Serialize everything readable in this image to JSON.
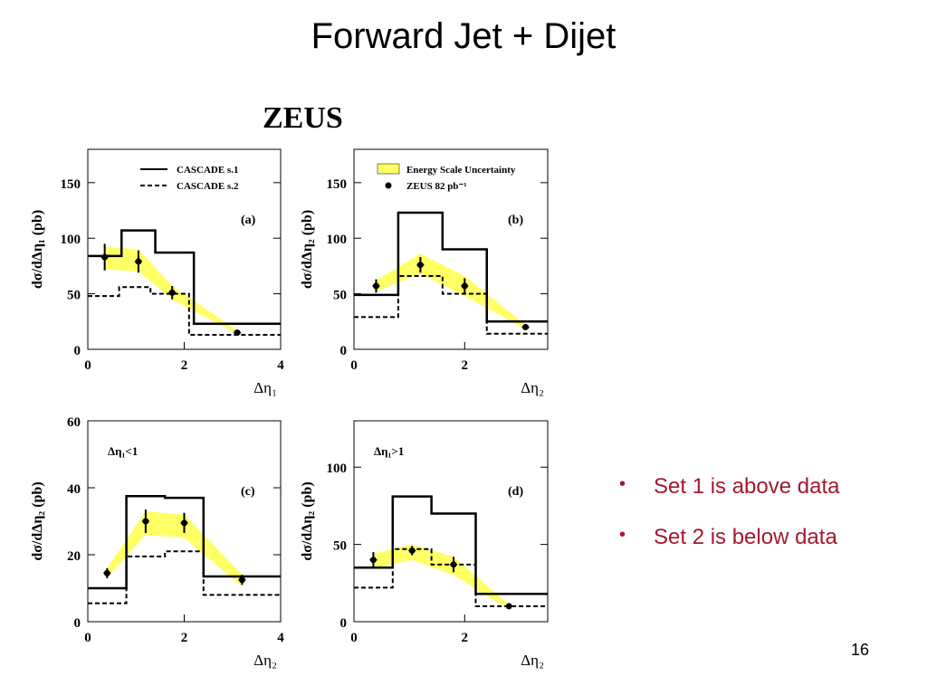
{
  "slide": {
    "title": "Forward Jet + Dijet",
    "experiment_label": "ZEUS",
    "bullets": [
      "Set 1 is above data",
      "Set 2 is below data"
    ],
    "page_number": "16"
  },
  "colors": {
    "band_fill": "#ffff66",
    "line": "#000000",
    "bullet_text": "#a3192b"
  },
  "chart_data": [
    {
      "type": "line",
      "panel_label": "(a)",
      "xlabel": "Δη₁",
      "ylabel": "dσ/dΔη₁  (pb)",
      "xlim": [
        0,
        4
      ],
      "ylim": [
        0,
        180
      ],
      "xticks": [
        0,
        2,
        4
      ],
      "yticks": [
        0,
        50,
        100,
        150
      ],
      "legend": {
        "position": "top-right",
        "entries": [
          {
            "label": "CASCADE s.1",
            "style": "solid"
          },
          {
            "label": "CASCADE s.2",
            "style": "dashed"
          }
        ]
      },
      "series": [
        {
          "name": "CASCADE s.1",
          "kind": "step",
          "style": "solid",
          "bins": [
            0,
            0.7,
            1.4,
            2.2,
            4.0
          ],
          "values": [
            84,
            107,
            87,
            23
          ]
        },
        {
          "name": "CASCADE s.2",
          "kind": "step",
          "style": "dashed",
          "bins": [
            0,
            0.65,
            1.3,
            2.1,
            4.0
          ],
          "values": [
            48,
            56,
            50,
            13
          ]
        },
        {
          "name": "data",
          "kind": "points",
          "x": [
            0.35,
            1.05,
            1.75,
            3.1
          ],
          "y": [
            83,
            79,
            51,
            15
          ],
          "yerr": [
            12,
            10,
            6,
            2
          ]
        },
        {
          "name": "band",
          "kind": "band",
          "x": [
            0.35,
            1.05,
            1.75,
            3.1
          ],
          "low": [
            72,
            70,
            45,
            14
          ],
          "high": [
            92,
            90,
            57,
            17
          ]
        }
      ]
    },
    {
      "type": "line",
      "panel_label": "(b)",
      "xlabel": "Δη₂",
      "ylabel": "dσ/dΔη₂  (pb)",
      "xlim": [
        0,
        3.5
      ],
      "ylim": [
        0,
        180
      ],
      "xticks": [
        0,
        2
      ],
      "yticks": [
        0,
        50,
        100,
        150
      ],
      "legend": {
        "position": "top-right",
        "entries": [
          {
            "label": "Energy Scale Uncertainty",
            "style": "band"
          },
          {
            "label": "ZEUS 82 pb⁻¹",
            "style": "point"
          }
        ]
      },
      "series": [
        {
          "name": "CASCADE s.1",
          "kind": "step",
          "style": "solid",
          "bins": [
            0,
            0.8,
            1.6,
            2.4,
            3.5
          ],
          "values": [
            49,
            123,
            90,
            25
          ]
        },
        {
          "name": "CASCADE s.2",
          "kind": "step",
          "style": "dashed",
          "bins": [
            0,
            0.8,
            1.6,
            2.4,
            3.5
          ],
          "values": [
            29,
            66,
            50,
            14
          ]
        },
        {
          "name": "data",
          "kind": "points",
          "x": [
            0.4,
            1.2,
            2.0,
            3.1
          ],
          "y": [
            57,
            76,
            57,
            20
          ],
          "yerr": [
            6,
            7,
            7,
            2
          ]
        },
        {
          "name": "band",
          "kind": "band",
          "x": [
            0.4,
            1.2,
            2.0,
            3.1
          ],
          "low": [
            52,
            68,
            48,
            18
          ],
          "high": [
            62,
            86,
            66,
            22
          ]
        }
      ]
    },
    {
      "type": "line",
      "panel_label": "(c)",
      "annotation": "Δη₁<1",
      "xlabel": "Δη₂",
      "ylabel": "dσ/dΔη₂  (pb)",
      "xlim": [
        0,
        4
      ],
      "ylim": [
        0,
        60
      ],
      "xticks": [
        0,
        2,
        4
      ],
      "yticks": [
        0,
        20,
        40,
        60
      ],
      "series": [
        {
          "name": "CASCADE s.1",
          "kind": "step",
          "style": "solid",
          "bins": [
            0,
            0.8,
            1.6,
            2.4,
            4.0
          ],
          "values": [
            10,
            37.5,
            37,
            13.5
          ]
        },
        {
          "name": "CASCADE s.2",
          "kind": "step",
          "style": "dashed",
          "bins": [
            0,
            0.8,
            1.6,
            2.4,
            4.0
          ],
          "values": [
            5.5,
            19.5,
            21,
            8
          ]
        },
        {
          "name": "data",
          "kind": "points",
          "x": [
            0.4,
            1.2,
            2.0,
            3.2
          ],
          "y": [
            14.5,
            30,
            29.5,
            12.5
          ],
          "yerr": [
            1.5,
            3.5,
            3,
            1.5
          ]
        },
        {
          "name": "band",
          "kind": "band",
          "x": [
            0.4,
            1.2,
            2.0,
            3.2
          ],
          "low": [
            13,
            26,
            25,
            10.5
          ],
          "high": [
            16,
            33,
            32,
            14
          ]
        }
      ]
    },
    {
      "type": "line",
      "panel_label": "(d)",
      "annotation": "Δη₁>1",
      "xlabel": "Δη₂",
      "ylabel": "dσ/dΔη₂  (pb)",
      "xlim": [
        0,
        3.5
      ],
      "ylim": [
        0,
        130
      ],
      "xticks": [
        0,
        2
      ],
      "yticks": [
        0,
        50,
        100
      ],
      "series": [
        {
          "name": "CASCADE s.1",
          "kind": "step",
          "style": "solid",
          "bins": [
            0,
            0.7,
            1.4,
            2.2,
            3.5
          ],
          "values": [
            35,
            81,
            70,
            18
          ]
        },
        {
          "name": "CASCADE s.2",
          "kind": "step",
          "style": "dashed",
          "bins": [
            0,
            0.7,
            1.4,
            2.2,
            3.5
          ],
          "values": [
            22,
            47,
            37,
            10
          ]
        },
        {
          "name": "data",
          "kind": "points",
          "x": [
            0.35,
            1.05,
            1.8,
            2.8
          ],
          "y": [
            40,
            46,
            37,
            10
          ],
          "yerr": [
            5,
            3,
            5,
            1.5
          ]
        },
        {
          "name": "band",
          "kind": "band",
          "x": [
            0.35,
            1.05,
            1.8,
            2.8
          ],
          "low": [
            34,
            40,
            30,
            8
          ],
          "high": [
            44,
            50,
            42,
            11
          ]
        }
      ]
    }
  ]
}
